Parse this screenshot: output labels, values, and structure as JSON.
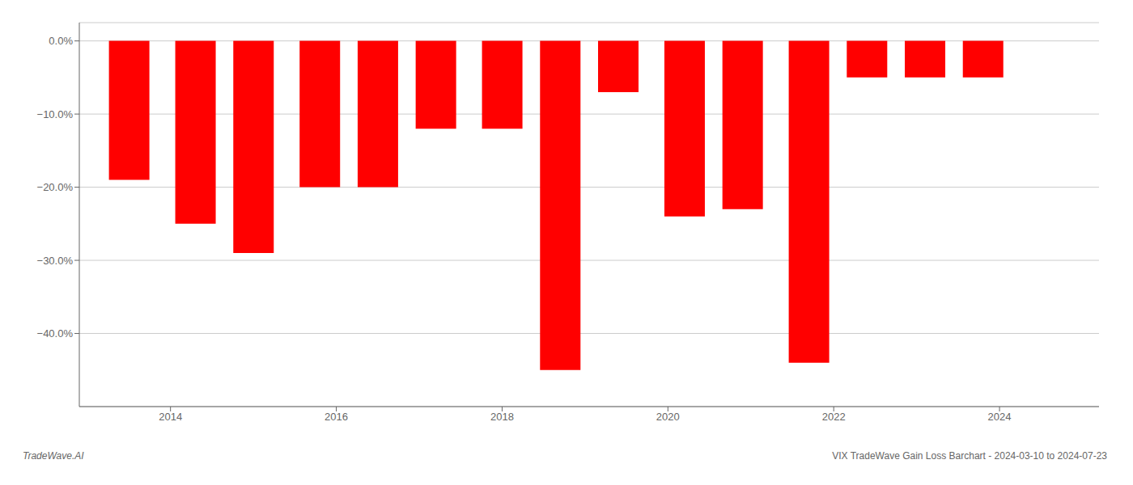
{
  "chart_data": {
    "type": "bar",
    "x": [
      2013.5,
      2014.3,
      2015.0,
      2015.8,
      2016.5,
      2017.2,
      2018.0,
      2018.7,
      2019.4,
      2020.2,
      2020.9,
      2021.7,
      2022.4,
      2023.1,
      2023.8
    ],
    "values": [
      -0.19,
      -0.25,
      -0.29,
      -0.2,
      -0.2,
      -0.12,
      -0.12,
      -0.45,
      -0.07,
      -0.24,
      -0.23,
      -0.44,
      -0.05,
      -0.05,
      -0.05
    ],
    "color": "#ff0000",
    "xlim": [
      2012.9,
      2025.2
    ],
    "xticks": [
      2014,
      2016,
      2018,
      2020,
      2022,
      2024
    ],
    "ylim": [
      -0.5,
      0.025
    ],
    "yticks": [
      {
        "value": 0.0,
        "label": "0.0%"
      },
      {
        "value": -0.1,
        "label": "−10.0%"
      },
      {
        "value": -0.2,
        "label": "−20.0%"
      },
      {
        "value": -0.3,
        "label": "−30.0%"
      },
      {
        "value": -0.4,
        "label": "−40.0%"
      }
    ],
    "grid": true,
    "annotations": [
      "TradeWave.AI",
      "VIX TradeWave Gain Loss Barchart - 2024-03-10 to 2024-07-23"
    ]
  }
}
